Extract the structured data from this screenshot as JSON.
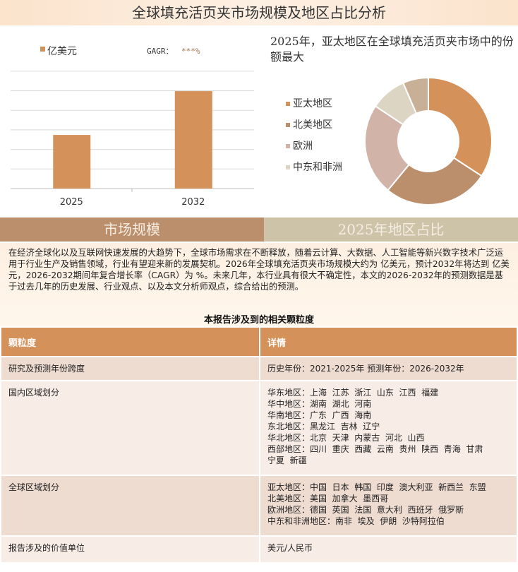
{
  "title": "全球填充活页夹市场规模及地区占比分析",
  "chart_data": [
    {
      "type": "bar",
      "categories": [
        "2025",
        "2032"
      ],
      "values": [
        2.74,
        4.98
      ],
      "legend": "亿美元",
      "annotation_label": "GAGR：",
      "annotation_value": "***%",
      "color": "#d4915a",
      "grid": true
    },
    {
      "type": "pie",
      "title": "2025年，亚太地区在全球填充活页夹市场中的份额最大",
      "donut": true,
      "series": [
        {
          "name": "亚太地区",
          "value": 34.2,
          "color": "#d4915a"
        },
        {
          "name": "北美地区",
          "value": 26.8,
          "color": "#bb8e6c"
        },
        {
          "name": "欧洲",
          "value": 23.3,
          "color": "#d1b3a8"
        },
        {
          "name": "中东和非洲",
          "value": 9.2,
          "color": "#ddd5c4"
        },
        {
          "name": "",
          "value": 6.5,
          "color": "#c8b096"
        }
      ],
      "legend": "left"
    }
  ],
  "banners": {
    "left": "市场规模",
    "right": "2025年地区占比"
  },
  "paragraph": "在经济全球化以及互联网快速发展的大趋势下，全球市场需求在不断释放，随着云计算、大数据、人工智能等新兴数字技术广泛运用于行业生产及销售领域，行业有望迎来新的发展契机。2026年全球填充活页夹市场规模大约为 亿美元，预计2032年将达到 亿美元，2026-2032期间年复合增长率（CAGR）为 %。未来几年，本行业具有很大不确定性，本文的2026-2032年的预测数据是基于过去几年的历史发展、行业观点、以及本文分析师观点，综合给出的预测。",
  "table": {
    "title": "本报告涉及到的相关颗粒度",
    "headers": [
      "颗粒度",
      "详情"
    ],
    "rows": [
      {
        "label": "研究及预测年份跨度",
        "lines": [
          "历史年份：2021-2025年 预测年份：2026-2032年"
        ]
      },
      {
        "label": "国内区域划分",
        "lines": [
          "华东地区：上海  江苏  浙江  山东  江西  福建",
          "华中地区：湖南  湖北  河南",
          "华南地区：广东  广西  海南",
          "东北地区：黑龙江  吉林  辽宁",
          "华北地区：北京  天津  内蒙古  河北  山西",
          "西部地区：四川  重庆  西藏  云南  贵州  陕西  青海  甘肃",
          "宁夏  新疆"
        ]
      },
      {
        "label": "全球区域划分",
        "lines": [
          "亚太地区：中国  日本  韩国  印度  澳大利亚  新西兰  东盟",
          "北美地区：美国  加拿大  墨西哥",
          "欧洲地区：德国  英国  法国  意大利  西班牙  俄罗斯",
          "中东和非洲地区：南非  埃及  伊朗  沙特阿拉伯"
        ]
      },
      {
        "label": "报告涉及的价值单位",
        "lines": [
          "美元/人民币"
        ]
      }
    ]
  }
}
